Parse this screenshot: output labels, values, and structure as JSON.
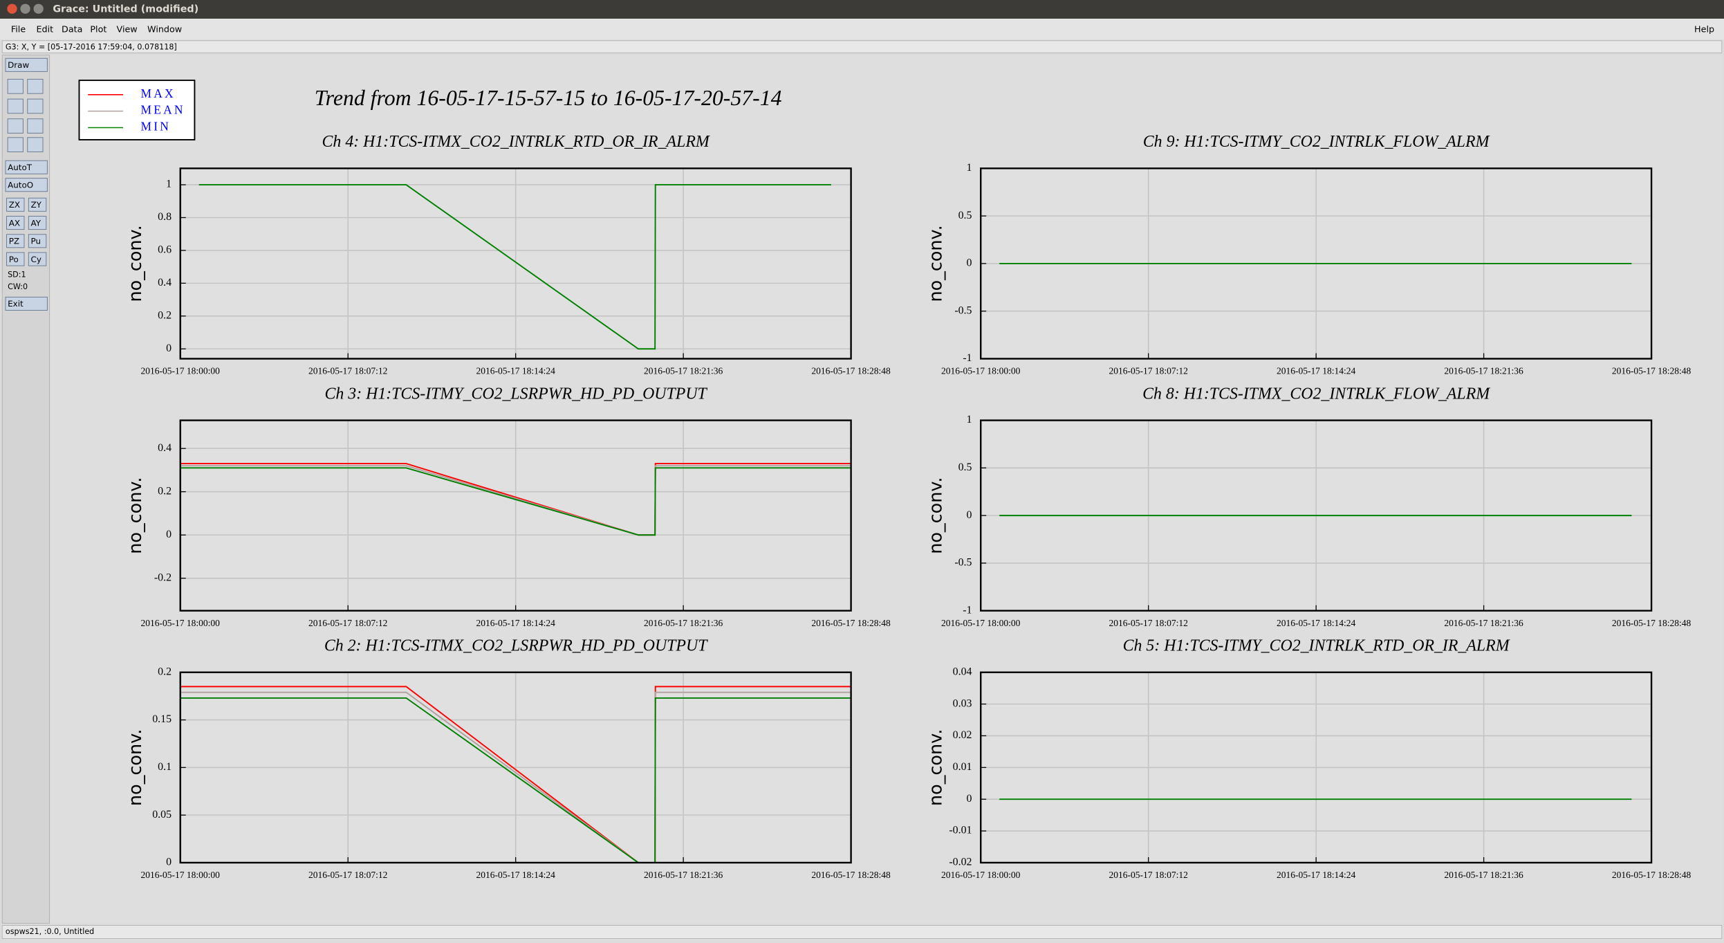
{
  "window_title": "Grace: Untitled (modified)",
  "menu": [
    "File",
    "Edit",
    "Data",
    "Plot",
    "View",
    "Window"
  ],
  "help": "Help",
  "locator": "G3: X, Y = [05-17-2016 17:59:04, 0.078118]",
  "toolbar": {
    "draw": "Draw",
    "auto": [
      "AutoT",
      "AutoO"
    ],
    "pairs": [
      "ZX",
      "ZY",
      "AX",
      "AY",
      "PZ",
      "Pu",
      "Po",
      "Cy"
    ],
    "info": [
      "SD:1",
      "CW:0"
    ],
    "exit": "Exit"
  },
  "status": "ospws21, :0.0, Untitled",
  "title": "Trend from 16-05-17-15-57-15 to 16-05-17-20-57-14",
  "chart_data": [
    {
      "type": "line",
      "title": "Ch 4: H1:TCS-ITMX_CO2_INTRLK_RTD_OR_IR_ALRM",
      "ylabel": "no_conv.",
      "x": [
        "2016-05-17 18:00:48",
        "2016-05-17 18:09:42",
        "2016-05-17 18:19:40",
        "2016-05-17 18:20:23",
        "2016-05-17 18:20:24",
        "2016-05-17 18:27:57"
      ],
      "series": [
        {
          "name": "MIN",
          "color": "#008000",
          "values": [
            1,
            1,
            0,
            0,
            1,
            1
          ]
        }
      ],
      "xlim": [
        "2016-05-17 18:00:00",
        "2016-05-17 18:28:48"
      ],
      "xticks": [
        "2016-05-17 18:00:00",
        "2016-05-17 18:07:12",
        "2016-05-17 18:14:24",
        "2016-05-17 18:21:36",
        "2016-05-17 18:28:48"
      ],
      "ylim": [
        -0.06,
        1.1
      ],
      "yticks": [
        0,
        0.2,
        0.4,
        0.6,
        0.8,
        1
      ],
      "grid": true
    },
    {
      "type": "line",
      "title": "Ch 9: H1:TCS-ITMY_CO2_INTRLK_FLOW_ALRM",
      "ylabel": "no_conv.",
      "x": [
        "2016-05-17 18:00:48",
        "2016-05-17 18:27:57"
      ],
      "series": [
        {
          "name": "MIN",
          "color": "#008000",
          "values": [
            0,
            0
          ]
        }
      ],
      "xlim": [
        "2016-05-17 18:00:00",
        "2016-05-17 18:28:48"
      ],
      "xticks": [
        "2016-05-17 18:00:00",
        "2016-05-17 18:07:12",
        "2016-05-17 18:14:24",
        "2016-05-17 18:21:36",
        "2016-05-17 18:28:48"
      ],
      "ylim": [
        -1,
        1
      ],
      "yticks": [
        -1,
        -0.5,
        0,
        0.5,
        1
      ],
      "grid": true
    },
    {
      "type": "line",
      "title": "Ch 3: H1:TCS-ITMY_CO2_LSRPWR_HD_PD_OUTPUT",
      "ylabel": "no_conv.",
      "x": [
        "2016-05-17 18:00:00",
        "2016-05-17 18:09:42",
        "2016-05-17 18:19:40",
        "2016-05-17 18:20:23",
        "2016-05-17 18:20:24",
        "2016-05-17 18:28:48"
      ],
      "series": [
        {
          "name": "MAX",
          "color": "#ff0000",
          "values": [
            0.33,
            0.33,
            0,
            0,
            0.33,
            0.33
          ]
        },
        {
          "name": "MEAN",
          "color": "#b0a0a0",
          "values": [
            0.32,
            0.32,
            0,
            0,
            0.32,
            0.32
          ]
        },
        {
          "name": "MIN",
          "color": "#008000",
          "values": [
            0.31,
            0.31,
            0,
            0,
            0.31,
            0.31
          ]
        }
      ],
      "xlim": [
        "2016-05-17 18:00:00",
        "2016-05-17 18:28:48"
      ],
      "xticks": [
        "2016-05-17 18:00:00",
        "2016-05-17 18:07:12",
        "2016-05-17 18:14:24",
        "2016-05-17 18:21:36",
        "2016-05-17 18:28:48"
      ],
      "ylim": [
        -0.35,
        0.53
      ],
      "yticks": [
        -0.2,
        0,
        0.2,
        0.4
      ],
      "grid": true
    },
    {
      "type": "line",
      "title": "Ch 8: H1:TCS-ITMX_CO2_INTRLK_FLOW_ALRM",
      "ylabel": "no_conv.",
      "x": [
        "2016-05-17 18:00:48",
        "2016-05-17 18:27:57"
      ],
      "series": [
        {
          "name": "MIN",
          "color": "#008000",
          "values": [
            0,
            0
          ]
        }
      ],
      "xlim": [
        "2016-05-17 18:00:00",
        "2016-05-17 18:28:48"
      ],
      "xticks": [
        "2016-05-17 18:00:00",
        "2016-05-17 18:07:12",
        "2016-05-17 18:14:24",
        "2016-05-17 18:21:36",
        "2016-05-17 18:28:48"
      ],
      "ylim": [
        -1,
        1
      ],
      "yticks": [
        -1,
        -0.5,
        0,
        0.5,
        1
      ],
      "grid": true
    },
    {
      "type": "line",
      "title": "Ch 2: H1:TCS-ITMX_CO2_LSRPWR_HD_PD_OUTPUT",
      "ylabel": "no_conv.",
      "x": [
        "2016-05-17 18:00:00",
        "2016-05-17 18:09:42",
        "2016-05-17 18:19:40",
        "2016-05-17 18:20:23",
        "2016-05-17 18:20:24",
        "2016-05-17 18:28:48"
      ],
      "series": [
        {
          "name": "MAX",
          "color": "#ff0000",
          "values": [
            0.185,
            0.185,
            0,
            0,
            0.185,
            0.185
          ]
        },
        {
          "name": "MEAN",
          "color": "#b0a0a0",
          "values": [
            0.179,
            0.179,
            0,
            0,
            0.179,
            0.179
          ]
        },
        {
          "name": "MIN",
          "color": "#008000",
          "values": [
            0.173,
            0.173,
            0,
            0,
            0.173,
            0.173
          ]
        }
      ],
      "xlim": [
        "2016-05-17 18:00:00",
        "2016-05-17 18:28:48"
      ],
      "xticks": [
        "2016-05-17 18:00:00",
        "2016-05-17 18:07:12",
        "2016-05-17 18:14:24",
        "2016-05-17 18:21:36",
        "2016-05-17 18:28:48"
      ],
      "ylim": [
        0,
        0.2
      ],
      "yticks": [
        0,
        0.05,
        0.1,
        0.15,
        0.2
      ],
      "grid": true
    },
    {
      "type": "line",
      "title": "Ch 5: H1:TCS-ITMY_CO2_INTRLK_RTD_OR_IR_ALRM",
      "ylabel": "no_conv.",
      "x": [
        "2016-05-17 18:00:48",
        "2016-05-17 18:27:57"
      ],
      "series": [
        {
          "name": "MIN",
          "color": "#008000",
          "values": [
            0,
            0
          ]
        }
      ],
      "xlim": [
        "2016-05-17 18:00:00",
        "2016-05-17 18:28:48"
      ],
      "xticks": [
        "2016-05-17 18:00:00",
        "2016-05-17 18:07:12",
        "2016-05-17 18:14:24",
        "2016-05-17 18:21:36",
        "2016-05-17 18:28:48"
      ],
      "ylim": [
        -0.02,
        0.04
      ],
      "yticks": [
        -0.02,
        -0.01,
        0,
        0.01,
        0.02,
        0.03,
        0.04
      ],
      "grid": true
    }
  ]
}
